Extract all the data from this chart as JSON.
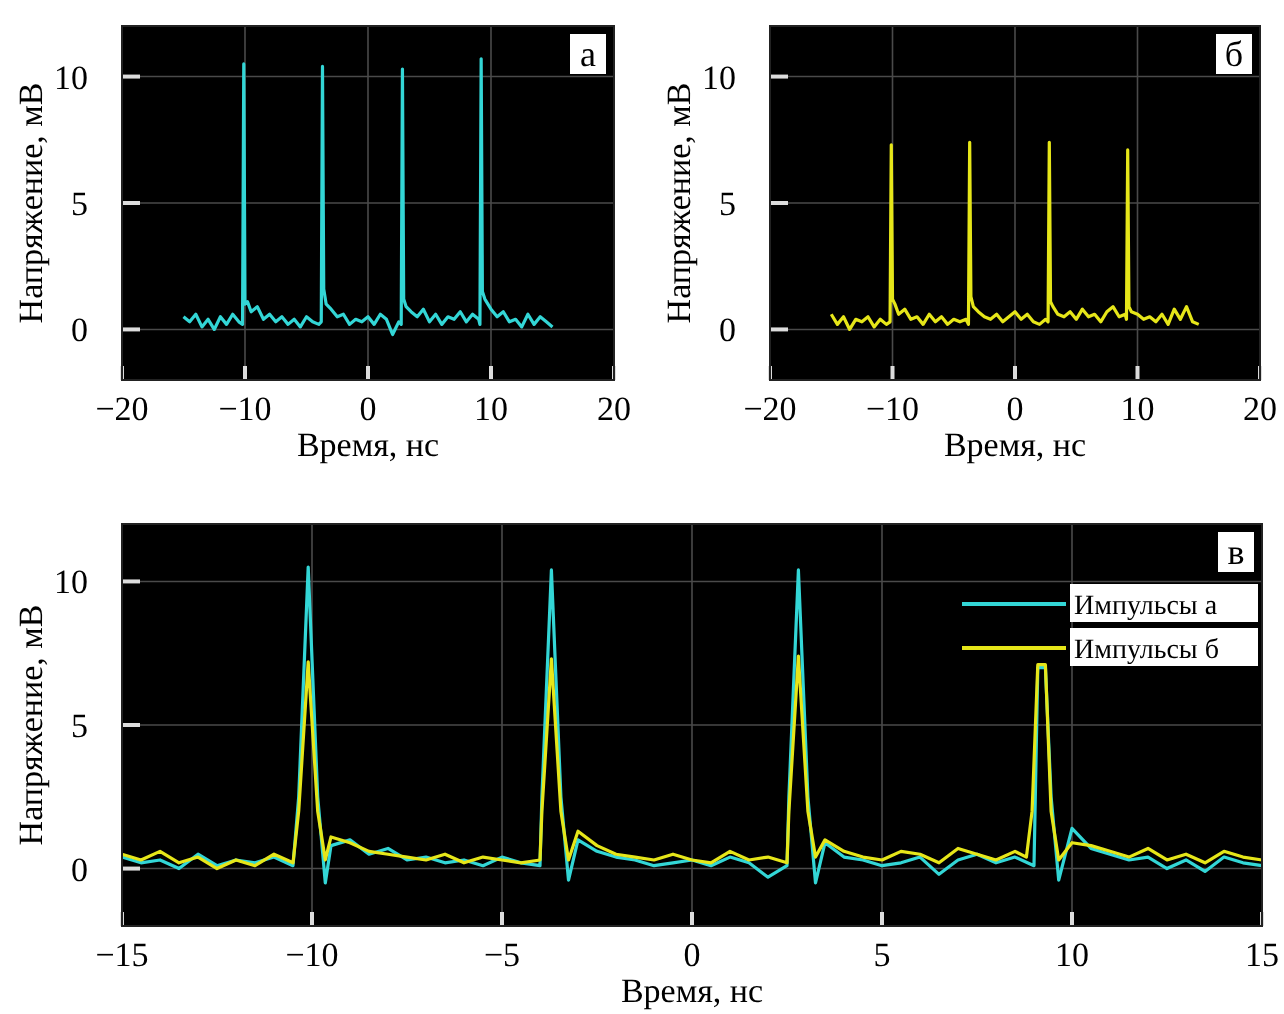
{
  "chart_data": [
    {
      "type": "line",
      "xlabel": "Время, нс",
      "ylabel": "Напряжение, мВ",
      "annotations": [
        "а"
      ],
      "xlim": [
        -20,
        20
      ],
      "ylim": [
        -2,
        12
      ],
      "xticks": [
        {
          "value": -20,
          "label": "−20"
        },
        {
          "value": -10,
          "label": "−10"
        },
        0,
        10,
        20
      ],
      "yticks": [
        0,
        5,
        10
      ],
      "grid": true,
      "legend": false,
      "series": [
        {
          "color": "#33d6d6",
          "x": [
            -15,
            -14.5,
            -14,
            -13.5,
            -13,
            -12.5,
            -12,
            -11.5,
            -11,
            -10.5,
            -10.2,
            -10.1,
            -10.0,
            -9.8,
            -9.5,
            -9,
            -8.5,
            -8,
            -7.5,
            -7,
            -6.5,
            -6,
            -5.5,
            -5,
            -4.5,
            -4,
            -3.8,
            -3.7,
            -3.6,
            -3.4,
            -3,
            -2.5,
            -2,
            -1.5,
            -1,
            -0.5,
            0,
            0.5,
            1,
            1.5,
            2,
            2.5,
            2.7,
            2.8,
            2.9,
            3.1,
            3.5,
            4,
            4.5,
            5,
            5.5,
            6,
            6.5,
            7,
            7.5,
            8,
            8.5,
            9,
            9.1,
            9.2,
            9.3,
            9.5,
            10,
            10.5,
            11,
            11.5,
            12,
            12.5,
            13,
            13.5,
            14,
            14.5,
            15
          ],
          "values": [
            0.5,
            0.3,
            0.6,
            0.1,
            0.4,
            0.0,
            0.5,
            0.2,
            0.6,
            0.3,
            0.2,
            10.5,
            1.0,
            1.1,
            0.7,
            0.9,
            0.4,
            0.6,
            0.3,
            0.5,
            0.2,
            0.4,
            0.1,
            0.5,
            0.3,
            0.2,
            0.3,
            10.4,
            1.6,
            1.0,
            0.8,
            0.5,
            0.6,
            0.2,
            0.4,
            0.3,
            0.5,
            0.2,
            0.6,
            0.4,
            -0.2,
            0.3,
            0.2,
            10.3,
            1.2,
            0.9,
            0.7,
            0.5,
            0.8,
            0.3,
            0.6,
            0.2,
            0.5,
            0.4,
            0.7,
            0.3,
            0.6,
            0.4,
            0.2,
            10.7,
            1.5,
            1.2,
            0.8,
            0.5,
            0.7,
            0.3,
            0.4,
            0.1,
            0.6,
            0.2,
            0.5,
            0.3,
            0.1
          ]
        }
      ]
    },
    {
      "type": "line",
      "xlabel": "Время, нс",
      "ylabel": "Напряжение, мВ",
      "annotations": [
        "б"
      ],
      "xlim": [
        -20,
        20
      ],
      "ylim": [
        -2,
        12
      ],
      "xticks": [
        {
          "value": -20,
          "label": "−20"
        },
        {
          "value": -10,
          "label": "−10"
        },
        0,
        10,
        20
      ],
      "yticks": [
        0,
        5,
        10
      ],
      "grid": true,
      "legend": false,
      "series": [
        {
          "color": "#e6e619",
          "x": [
            -15,
            -14.5,
            -14,
            -13.5,
            -13,
            -12.5,
            -12,
            -11.5,
            -11,
            -10.5,
            -10.2,
            -10.1,
            -10.0,
            -9.8,
            -9.5,
            -9,
            -8.5,
            -8,
            -7.5,
            -7,
            -6.5,
            -6,
            -5.5,
            -5,
            -4.5,
            -4,
            -3.8,
            -3.7,
            -3.6,
            -3.4,
            -3,
            -2.5,
            -2,
            -1.5,
            -1,
            -0.5,
            0,
            0.5,
            1,
            1.5,
            2,
            2.5,
            2.7,
            2.8,
            2.9,
            3.1,
            3.5,
            4,
            4.5,
            5,
            5.5,
            6,
            6.5,
            7,
            7.5,
            8,
            8.5,
            9,
            9.1,
            9.2,
            9.3,
            9.5,
            10,
            10.5,
            11,
            11.5,
            12,
            12.5,
            13,
            13.5,
            14,
            14.5,
            15
          ],
          "values": [
            0.6,
            0.2,
            0.5,
            0.0,
            0.4,
            0.3,
            0.5,
            0.1,
            0.4,
            0.2,
            0.3,
            7.3,
            1.2,
            1.0,
            0.6,
            0.8,
            0.4,
            0.5,
            0.2,
            0.6,
            0.3,
            0.5,
            0.2,
            0.4,
            0.3,
            0.4,
            0.2,
            7.4,
            1.3,
            0.9,
            0.7,
            0.5,
            0.4,
            0.6,
            0.3,
            0.5,
            0.7,
            0.4,
            0.6,
            0.3,
            0.2,
            0.4,
            0.3,
            7.4,
            1.1,
            0.9,
            0.6,
            0.5,
            0.7,
            0.4,
            0.8,
            0.5,
            0.6,
            0.3,
            0.7,
            0.9,
            0.5,
            0.6,
            0.4,
            7.1,
            0.9,
            0.7,
            0.6,
            0.4,
            0.5,
            0.3,
            0.6,
            0.2,
            0.8,
            0.4,
            0.9,
            0.3,
            0.2
          ]
        }
      ]
    },
    {
      "type": "line",
      "xlabel": "Время, нс",
      "ylabel": "Напряжение, мВ",
      "annotations": [
        "в"
      ],
      "xlim": [
        -15,
        15
      ],
      "ylim": [
        -2,
        12
      ],
      "xticks": [
        {
          "value": -15,
          "label": "−15"
        },
        {
          "value": -10,
          "label": "−10"
        },
        {
          "value": -5,
          "label": "−5"
        },
        0,
        5,
        10,
        15
      ],
      "yticks": [
        0,
        5,
        10
      ],
      "grid": true,
      "legend": "top right",
      "series": [
        {
          "name": "Импульсы а",
          "color": "#33d6d6",
          "x": [
            -15,
            -14.5,
            -14,
            -13.5,
            -13,
            -12.5,
            -12,
            -11.5,
            -11,
            -10.5,
            -10.35,
            -10.1,
            -9.85,
            -9.65,
            -9.5,
            -9,
            -8.5,
            -8,
            -7.5,
            -7,
            -6.5,
            -6,
            -5.5,
            -5,
            -4.5,
            -4,
            -3.95,
            -3.7,
            -3.45,
            -3.25,
            -3,
            -2.5,
            -2,
            -1.5,
            -1,
            -0.5,
            0,
            0.5,
            1,
            1.5,
            2,
            2.5,
            2.55,
            2.8,
            3.05,
            3.25,
            3.5,
            4,
            4.5,
            5,
            5.5,
            6,
            6.5,
            7,
            7.5,
            8,
            8.5,
            9,
            9.1,
            9.3,
            9.45,
            9.65,
            10,
            10.5,
            11,
            11.5,
            12,
            12.5,
            13,
            13.5,
            14,
            14.5,
            15
          ],
          "values": [
            0.4,
            0.2,
            0.3,
            0.0,
            0.5,
            0.1,
            0.3,
            0.2,
            0.4,
            0.1,
            2.5,
            10.5,
            2.5,
            -0.5,
            0.8,
            1.0,
            0.5,
            0.7,
            0.3,
            0.4,
            0.2,
            0.3,
            0.1,
            0.4,
            0.2,
            0.1,
            2.5,
            10.4,
            2.5,
            -0.4,
            1.0,
            0.6,
            0.4,
            0.3,
            0.1,
            0.2,
            0.3,
            0.1,
            0.4,
            0.2,
            -0.3,
            0.1,
            2.5,
            10.4,
            2.5,
            -0.5,
            0.9,
            0.4,
            0.3,
            0.1,
            0.2,
            0.4,
            -0.2,
            0.3,
            0.5,
            0.2,
            0.4,
            0.1,
            7.0,
            7.0,
            2.5,
            -0.4,
            1.4,
            0.7,
            0.5,
            0.3,
            0.4,
            0.0,
            0.3,
            -0.1,
            0.4,
            0.2,
            0.1
          ]
        },
        {
          "name": "Импульсы б",
          "color": "#e6e619",
          "x": [
            -15,
            -14.5,
            -14,
            -13.5,
            -13,
            -12.5,
            -12,
            -11.5,
            -11,
            -10.5,
            -10.35,
            -10.1,
            -9.85,
            -9.65,
            -9.5,
            -9,
            -8.5,
            -8,
            -7.5,
            -7,
            -6.5,
            -6,
            -5.5,
            -5,
            -4.5,
            -4,
            -3.95,
            -3.7,
            -3.45,
            -3.25,
            -3,
            -2.5,
            -2,
            -1.5,
            -1,
            -0.5,
            0,
            0.5,
            1,
            1.5,
            2,
            2.5,
            2.55,
            2.8,
            3.05,
            3.25,
            3.5,
            4,
            4.5,
            5,
            5.5,
            6,
            6.5,
            7,
            7.5,
            8,
            8.5,
            8.8,
            8.95,
            9.1,
            9.3,
            9.45,
            9.65,
            10,
            10.5,
            11,
            11.5,
            12,
            12.5,
            13,
            13.5,
            14,
            14.5,
            15
          ],
          "values": [
            0.5,
            0.3,
            0.6,
            0.2,
            0.4,
            0.0,
            0.3,
            0.1,
            0.5,
            0.2,
            2.0,
            7.2,
            2.0,
            0.3,
            1.1,
            0.9,
            0.6,
            0.5,
            0.4,
            0.3,
            0.5,
            0.2,
            0.4,
            0.3,
            0.2,
            0.3,
            2.0,
            7.3,
            2.0,
            0.3,
            1.3,
            0.8,
            0.5,
            0.4,
            0.3,
            0.5,
            0.3,
            0.2,
            0.6,
            0.3,
            0.4,
            0.2,
            2.0,
            7.4,
            2.0,
            0.4,
            1.0,
            0.6,
            0.4,
            0.3,
            0.6,
            0.5,
            0.2,
            0.7,
            0.5,
            0.3,
            0.6,
            0.4,
            2.0,
            7.1,
            7.1,
            2.0,
            0.3,
            0.9,
            0.8,
            0.6,
            0.4,
            0.7,
            0.3,
            0.5,
            0.2,
            0.6,
            0.4,
            0.3
          ]
        }
      ]
    }
  ]
}
